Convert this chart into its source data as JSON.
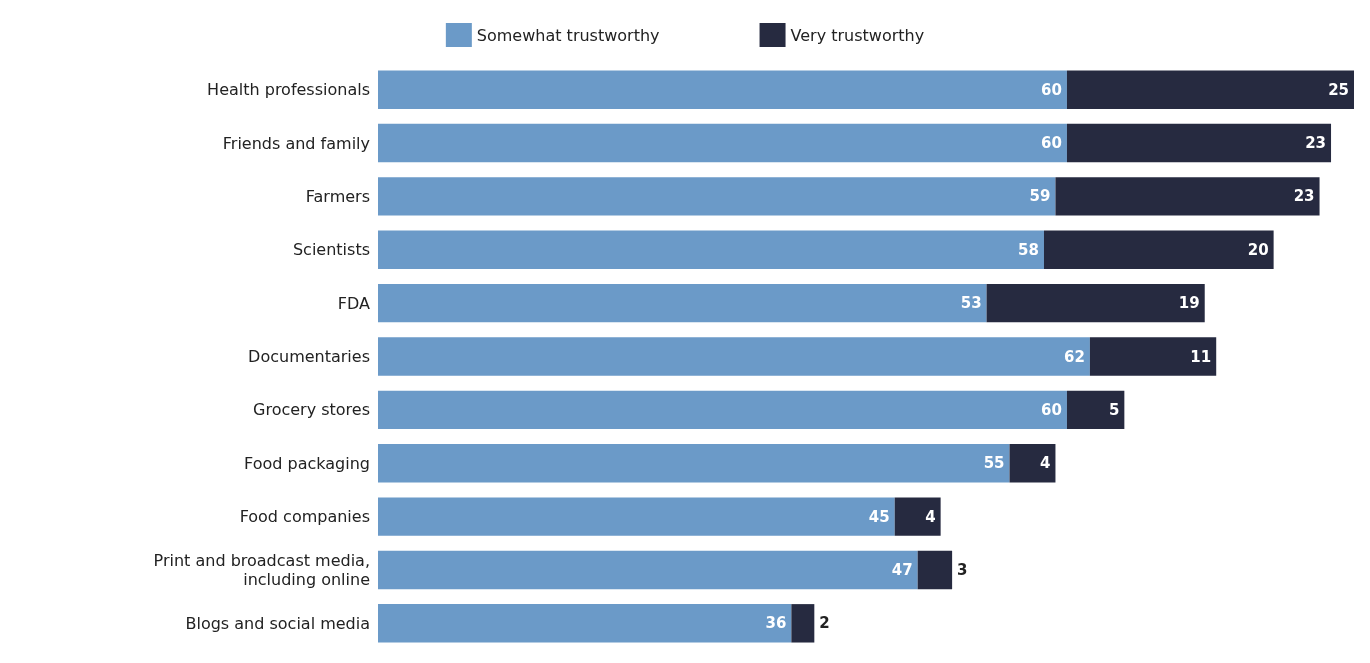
{
  "chart_data": {
    "type": "bar",
    "orientation": "horizontal",
    "stacked": true,
    "data_labels": true,
    "legend": "top",
    "categories": [
      "Health professionals",
      "Friends and family",
      "Farmers",
      "Scientists",
      "FDA",
      "Documentaries",
      "Grocery stores",
      "Food packaging",
      "Food companies",
      "Print and broadcast media,\nincluding online",
      "Blogs and social media"
    ],
    "series": [
      {
        "name": "Somewhat trustworthy",
        "color": "#6b9ac8",
        "values": [
          60,
          60,
          59,
          58,
          53,
          62,
          60,
          55,
          45,
          47,
          36
        ]
      },
      {
        "name": "Very trustworthy",
        "color": "#262a40",
        "values": [
          25,
          23,
          23,
          20,
          19,
          11,
          5,
          4,
          4,
          3,
          2
        ]
      }
    ]
  }
}
